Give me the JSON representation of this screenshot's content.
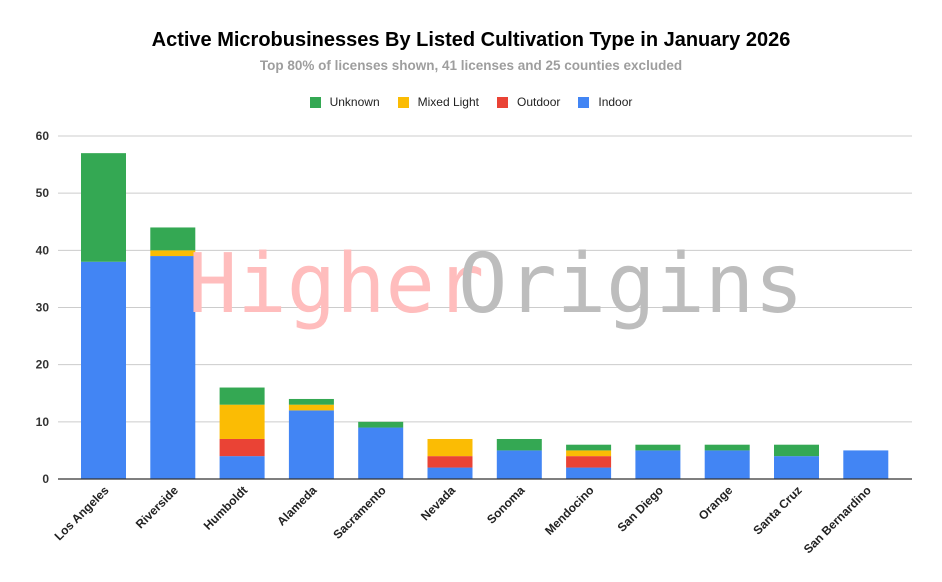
{
  "chart_data": {
    "type": "bar",
    "stacked": true,
    "title": "Active Microbusinesses By Listed Cultivation Type in January 2026",
    "subtitle": "Top 80% of licenses shown, 41 licenses and 25 counties excluded",
    "watermark": {
      "part1": "Higher",
      "part2": "Origins"
    },
    "categories": [
      "Los Angeles",
      "Riverside",
      "Humboldt",
      "Alameda",
      "Sacramento",
      "Nevada",
      "Sonoma",
      "Mendocino",
      "San Diego",
      "Orange",
      "Santa Cruz",
      "San Bernardino"
    ],
    "series": [
      {
        "name": "Indoor",
        "color": "#4285f4",
        "values": [
          38,
          39,
          4,
          12,
          9,
          2,
          5,
          2,
          5,
          5,
          4,
          5
        ]
      },
      {
        "name": "Outdoor",
        "color": "#ea4335",
        "values": [
          0,
          0,
          3,
          0,
          0,
          2,
          0,
          2,
          0,
          0,
          0,
          0
        ]
      },
      {
        "name": "Mixed Light",
        "color": "#fbbc04",
        "values": [
          0,
          1,
          6,
          1,
          0,
          3,
          0,
          1,
          0,
          0,
          0,
          0
        ]
      },
      {
        "name": "Unknown",
        "color": "#34a853",
        "values": [
          19,
          4,
          3,
          1,
          1,
          0,
          2,
          1,
          1,
          1,
          2,
          0
        ]
      }
    ],
    "legend_order": [
      "Unknown",
      "Mixed Light",
      "Outdoor",
      "Indoor"
    ],
    "legend_position": "top",
    "ylim": [
      0,
      60
    ],
    "yticks": [
      0,
      10,
      20,
      30,
      40,
      50,
      60
    ],
    "grid": true,
    "xlabel": "",
    "ylabel": ""
  }
}
